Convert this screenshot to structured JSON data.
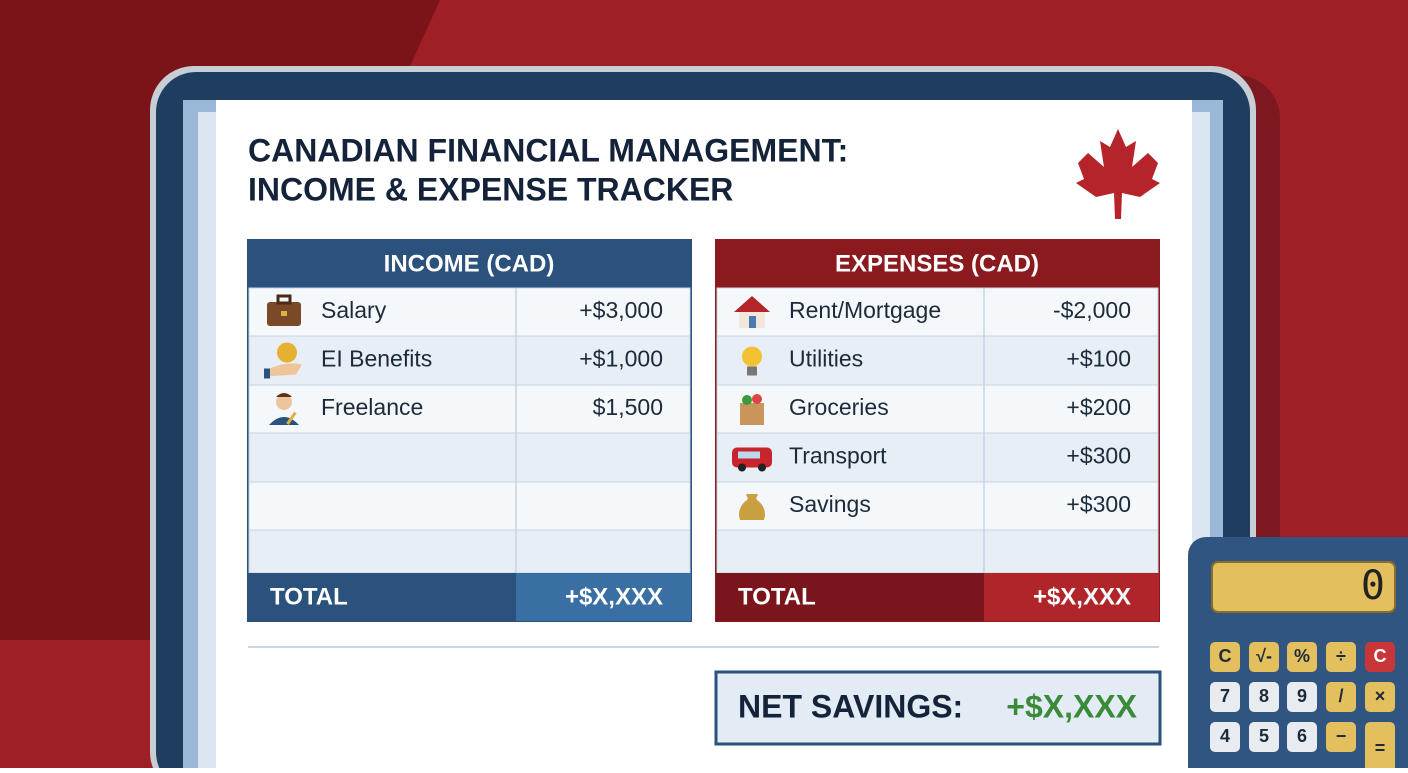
{
  "header": {
    "title_lines": [
      "CANADIAN FINANCIAL MANAGEMENT:",
      "INCOME & EXPENSE TRACKER"
    ]
  },
  "income": {
    "heading": "INCOME (CAD)",
    "rows": [
      [
        "Salary",
        "+$3,000"
      ],
      [
        "EI Benefits",
        "+$1,000"
      ],
      [
        "Freelance",
        "$1,500"
      ]
    ],
    "total": [
      "TOTAL",
      "+$X,XXX"
    ]
  },
  "expenses": {
    "heading": "EXPENSES (CAD)",
    "rows": [
      [
        "Rent/Mortgage",
        "-$2,000"
      ],
      [
        "Utilities",
        "+$100"
      ],
      [
        "Groceries",
        "+$200"
      ],
      [
        "Transport",
        "+$300"
      ],
      [
        "Savings",
        "+$300"
      ]
    ],
    "total": [
      "TOTAL",
      "+$X,XXX"
    ]
  },
  "net_savings": {
    "label": "NET SAVINGS:",
    "value": "+$X,XXX"
  },
  "calculator": {
    "display": "0",
    "keys": [
      [
        "C",
        "√-",
        "%",
        "÷",
        "C"
      ],
      [
        "7",
        "8",
        "9",
        "/",
        "×"
      ],
      [
        "4",
        "5",
        "6",
        "−",
        "="
      ]
    ]
  }
}
